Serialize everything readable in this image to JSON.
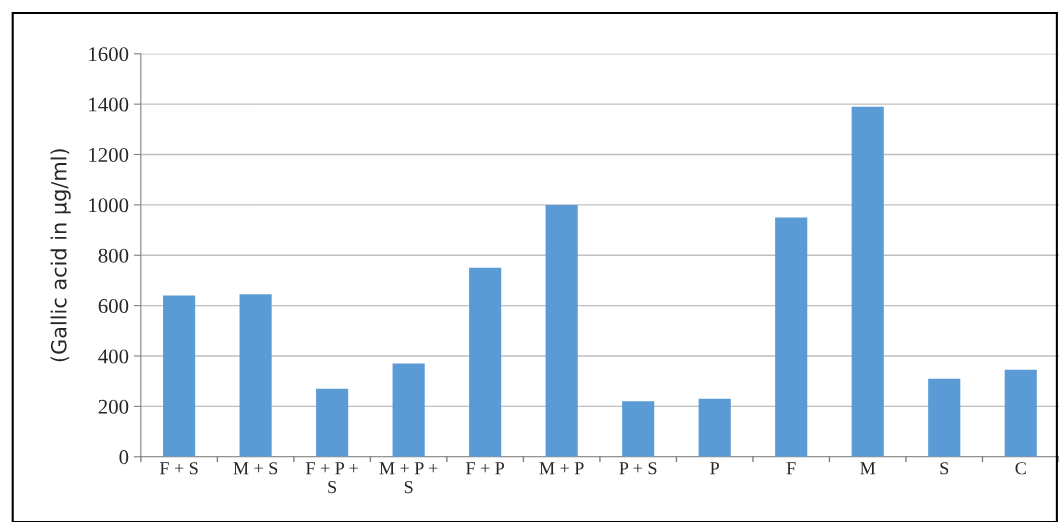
{
  "chart_data": {
    "type": "bar",
    "ylabel": "(Gallic acid in µg/ml)",
    "categories": [
      "F + S",
      "M + S",
      "F + P +\nS",
      "M + P +\nS",
      "F + P",
      "M + P",
      "P + S",
      "P",
      "F",
      "M",
      "S",
      "C"
    ],
    "values": [
      640,
      645,
      270,
      370,
      750,
      1000,
      220,
      230,
      950,
      1390,
      310,
      345
    ],
    "color": "#5b9bd5",
    "ylim": [
      0,
      1600
    ],
    "yticks": [
      0,
      200,
      400,
      600,
      800,
      1000,
      1200,
      1400,
      1600
    ],
    "grid": "y",
    "legend": false
  }
}
